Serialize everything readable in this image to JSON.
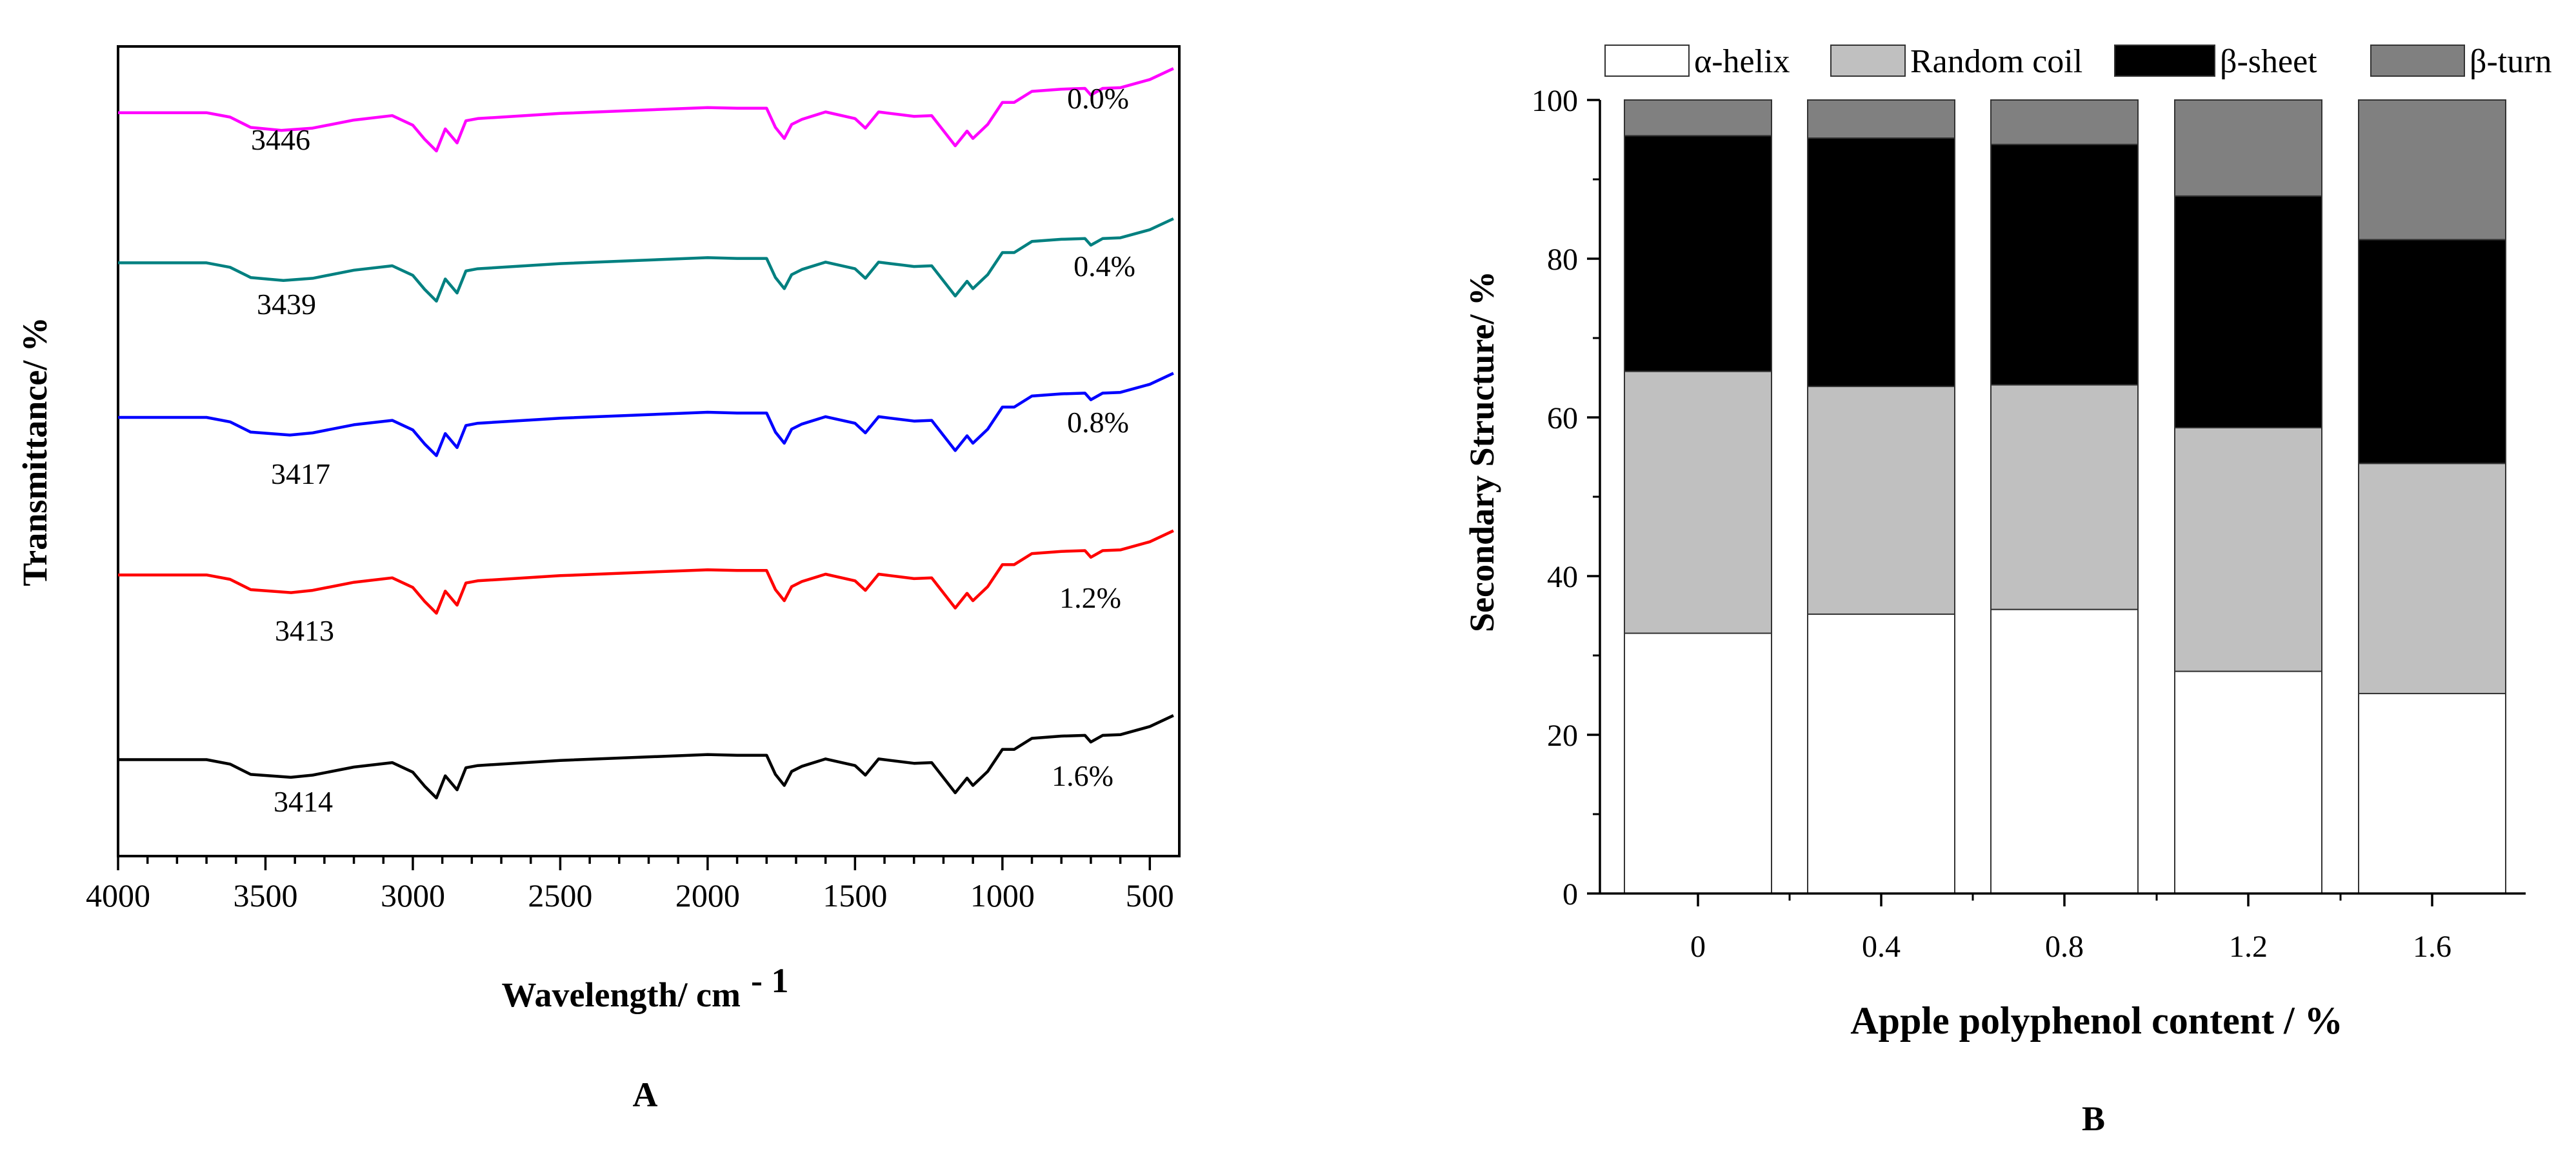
{
  "chart_data": [
    {
      "type": "line",
      "panel_label": "A",
      "xlabel": "Wavelength/ cm",
      "xlabel_superscript": "- 1",
      "ylabel": "Transmittance/ %",
      "xlim": [
        4000,
        400
      ],
      "x_reversed": true,
      "xticks": [
        "4000",
        "3500",
        "3000",
        "2500",
        "2000",
        "1500",
        "1000",
        "500"
      ],
      "y_ticks_shown": false,
      "grid": false,
      "series": [
        {
          "name": "0.0%",
          "color": "#ff00ff",
          "peak_label": "3446",
          "x": [
            4000,
            3700,
            3620,
            3550,
            3446,
            3340,
            3200,
            3070,
            3000,
            2960,
            2920,
            2890,
            2850,
            2820,
            2780,
            2500,
            2000,
            1900,
            1800,
            1770,
            1740,
            1715,
            1680,
            1600,
            1500,
            1465,
            1420,
            1380,
            1300,
            1240,
            1160,
            1120,
            1100,
            1050,
            1000,
            960,
            900,
            800,
            720,
            700,
            660,
            600,
            500,
            420
          ],
          "y": [
            95.0,
            95.0,
            94.4,
            93.0,
            92.6,
            92.9,
            94.0,
            94.6,
            93.3,
            91.4,
            89.8,
            92.8,
            90.9,
            93.9,
            94.2,
            94.9,
            95.7,
            95.6,
            95.6,
            93.0,
            91.5,
            93.4,
            94.1,
            95.1,
            94.2,
            92.9,
            95.1,
            94.9,
            94.5,
            94.6,
            90.5,
            92.5,
            91.5,
            93.4,
            96.4,
            96.4,
            97.9,
            98.2,
            98.3,
            97.4,
            98.3,
            98.4,
            99.5,
            101.0
          ]
        },
        {
          "name": "0.4%",
          "color": "#008080",
          "peak_label": "3439",
          "x": [
            4000,
            3700,
            3620,
            3550,
            3439,
            3340,
            3200,
            3070,
            3000,
            2960,
            2920,
            2890,
            2850,
            2820,
            2780,
            2500,
            2000,
            1900,
            1800,
            1770,
            1740,
            1715,
            1680,
            1600,
            1500,
            1465,
            1420,
            1380,
            1300,
            1240,
            1160,
            1120,
            1100,
            1050,
            1000,
            960,
            900,
            800,
            720,
            700,
            660,
            600,
            500,
            420
          ],
          "y": [
            74.6,
            74.6,
            74.0,
            72.6,
            72.2,
            72.5,
            73.6,
            74.2,
            72.9,
            71.0,
            69.4,
            72.4,
            70.5,
            73.5,
            73.8,
            74.5,
            75.3,
            75.2,
            75.2,
            72.6,
            71.1,
            73.0,
            73.7,
            74.7,
            73.8,
            72.5,
            74.7,
            74.5,
            74.1,
            74.2,
            70.1,
            72.1,
            71.1,
            73.0,
            76.0,
            76.0,
            77.5,
            77.8,
            77.9,
            77.0,
            77.9,
            78.0,
            79.1,
            80.6
          ]
        },
        {
          "name": "0.8%",
          "color": "#0000ff",
          "peak_label": "3417",
          "x": [
            4000,
            3700,
            3620,
            3550,
            3417,
            3340,
            3200,
            3070,
            3000,
            2960,
            2920,
            2890,
            2850,
            2820,
            2780,
            2500,
            2000,
            1900,
            1800,
            1770,
            1740,
            1715,
            1680,
            1600,
            1500,
            1465,
            1420,
            1380,
            1300,
            1240,
            1160,
            1120,
            1100,
            1050,
            1000,
            960,
            900,
            800,
            720,
            700,
            660,
            600,
            500,
            420
          ],
          "y": [
            53.6,
            53.6,
            53.0,
            51.6,
            51.2,
            51.5,
            52.6,
            53.2,
            51.9,
            50.0,
            48.4,
            51.4,
            49.5,
            52.5,
            52.8,
            53.5,
            54.3,
            54.2,
            54.2,
            51.6,
            50.1,
            52.0,
            52.7,
            53.7,
            52.8,
            51.5,
            53.7,
            53.5,
            53.1,
            53.2,
            49.1,
            51.1,
            50.1,
            52.0,
            55.0,
            55.0,
            56.5,
            56.8,
            56.9,
            56.0,
            56.9,
            57.0,
            58.1,
            59.6
          ]
        },
        {
          "name": "1.2%",
          "color": "#ff0000",
          "peak_label": "3413",
          "x": [
            4000,
            3700,
            3620,
            3550,
            3413,
            3340,
            3200,
            3070,
            3000,
            2960,
            2920,
            2890,
            2850,
            2820,
            2780,
            2500,
            2000,
            1900,
            1800,
            1770,
            1740,
            1715,
            1680,
            1600,
            1500,
            1465,
            1420,
            1380,
            1300,
            1240,
            1160,
            1120,
            1100,
            1050,
            1000,
            960,
            900,
            800,
            720,
            700,
            660,
            600,
            500,
            420
          ],
          "y": [
            32.2,
            32.2,
            31.6,
            30.2,
            29.8,
            30.1,
            31.2,
            31.8,
            30.5,
            28.6,
            27.0,
            30.0,
            28.1,
            31.1,
            31.4,
            32.1,
            32.9,
            32.8,
            32.8,
            30.2,
            28.7,
            30.6,
            31.3,
            32.3,
            31.4,
            30.1,
            32.3,
            32.1,
            31.7,
            31.8,
            27.7,
            29.7,
            28.7,
            30.6,
            33.6,
            33.6,
            35.1,
            35.4,
            35.5,
            34.6,
            35.5,
            35.6,
            36.7,
            38.2
          ]
        },
        {
          "name": "1.6%",
          "color": "#000000",
          "peak_label": "3414",
          "x": [
            4000,
            3700,
            3620,
            3550,
            3414,
            3340,
            3200,
            3070,
            3000,
            2960,
            2920,
            2890,
            2850,
            2820,
            2780,
            2500,
            2000,
            1900,
            1800,
            1770,
            1740,
            1715,
            1680,
            1600,
            1500,
            1465,
            1420,
            1380,
            1300,
            1240,
            1160,
            1120,
            1100,
            1050,
            1000,
            960,
            900,
            800,
            720,
            700,
            660,
            600,
            500,
            420
          ],
          "y": [
            7.1,
            7.1,
            6.5,
            5.1,
            4.7,
            5.0,
            6.1,
            6.7,
            5.4,
            3.5,
            1.9,
            4.9,
            3.0,
            6.0,
            6.3,
            7.0,
            7.8,
            7.7,
            7.7,
            5.1,
            3.6,
            5.5,
            6.2,
            7.2,
            6.3,
            5.0,
            7.2,
            7.0,
            6.6,
            6.7,
            2.6,
            4.6,
            3.6,
            5.5,
            8.5,
            8.5,
            10.0,
            10.3,
            10.4,
            9.5,
            10.4,
            10.5,
            11.6,
            13.1
          ]
        }
      ]
    },
    {
      "type": "bar",
      "stacked": true,
      "panel_label": "B",
      "xlabel": "Apple polyphenol content / %",
      "ylabel": "Secondary Structure/ %",
      "categories": [
        "0",
        "0.4",
        "0.8",
        "1.2",
        "1.6"
      ],
      "ylim": [
        0,
        100
      ],
      "yticks": [
        "0",
        "20",
        "40",
        "60",
        "80",
        "100"
      ],
      "legend_position": "top",
      "grid": false,
      "series": [
        {
          "name": "α-helix",
          "color": "#ffffff",
          "values": [
            32.8,
            35.2,
            35.8,
            28.0,
            25.2
          ]
        },
        {
          "name": "Random coil",
          "color": "#c0c0c0",
          "values": [
            33.0,
            28.7,
            28.3,
            30.7,
            29.0
          ]
        },
        {
          "name": "β-sheet",
          "color": "#000000",
          "values": [
            29.7,
            31.3,
            30.3,
            29.2,
            28.2
          ]
        },
        {
          "name": "β-turn",
          "color": "#808080",
          "values": [
            4.5,
            4.8,
            5.6,
            12.1,
            17.6
          ]
        }
      ]
    }
  ]
}
